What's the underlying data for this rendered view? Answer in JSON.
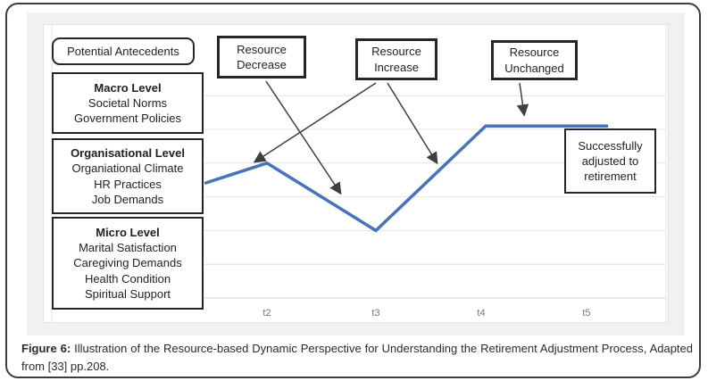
{
  "figure": {
    "caption_label": "Figure 6:",
    "caption_text": " Illustration of the Resource-based Dynamic Perspective for Understanding the Retirement Adjustment Process, Adapted from [33] pp.208."
  },
  "diagram": {
    "antecedents_label": "Potential Antecedents",
    "levels": [
      {
        "title": "Macro Level",
        "items": [
          "Societal Norms",
          "Government Policies"
        ]
      },
      {
        "title": "Organisational Level",
        "items": [
          "Organiational Climate",
          "HR Practices",
          "Job Demands"
        ]
      },
      {
        "title": "Micro Level",
        "items": [
          "Marital Satisfaction",
          "Caregiving Demands",
          "Health Condition",
          "Spiritual Support"
        ]
      }
    ],
    "annotations": [
      {
        "label": "Resource Decrease"
      },
      {
        "label": "Resource Increase"
      },
      {
        "label": "Resource Unchanged"
      }
    ],
    "outcome_label": "Successfully adjusted to retirement",
    "arrow_color": "#3f3f3f"
  },
  "chart_data": {
    "type": "line",
    "categories": [
      "t2",
      "t3",
      "t4",
      "t5"
    ],
    "values": [
      4.0,
      2.0,
      5.1,
      5.1
    ],
    "line_start_value": 3.4,
    "title": "",
    "xlabel": "",
    "ylabel": "",
    "grid": true,
    "legend": false,
    "series_color": "#4472c4",
    "gridline_color": "#e4e4e4",
    "axis_line_color": "#d6d6d6",
    "tick_label_color": "#767676"
  }
}
